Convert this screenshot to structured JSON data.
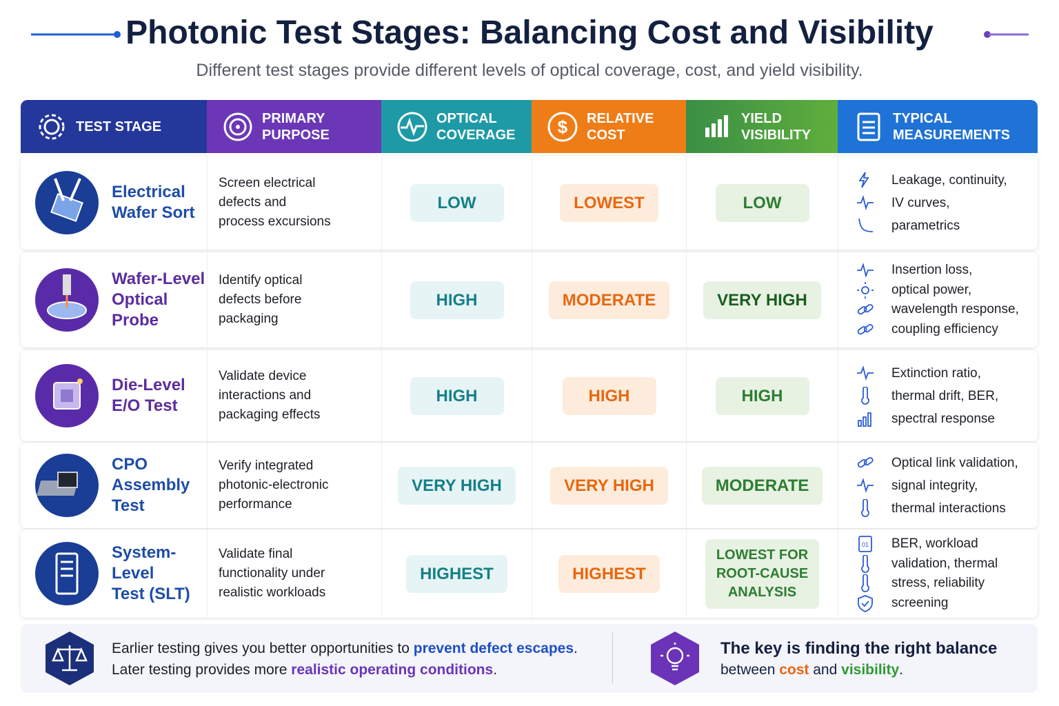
{
  "header": {
    "title": "Photonic Test Stages: Balancing Cost and Visibility",
    "subtitle": "Different test stages provide different levels of optical coverage, cost, and yield visibility."
  },
  "table": {
    "columns": [
      [
        "TEST STAGE"
      ],
      [
        "PRIMARY PURPOSE"
      ],
      [
        "OPTICAL",
        "COVERAGE"
      ],
      [
        "RELATIVE",
        "COST"
      ],
      [
        "YIELD",
        "VISIBILITY"
      ],
      [
        "TYPICAL",
        "MEASUREMENTS"
      ]
    ],
    "rows": [
      {
        "stage": [
          "Electrical",
          "Wafer Sort"
        ],
        "purpose": [
          "Screen electrical",
          "defects and",
          "process excursions"
        ],
        "coverage": [
          "LOW"
        ],
        "cost": [
          "LOWEST"
        ],
        "visibility": [
          "LOW"
        ],
        "measurements": [
          "Leakage, continuity,",
          "IV curves,",
          "parametrics"
        ]
      },
      {
        "stage": [
          "Wafer-Level",
          "Optical Probe"
        ],
        "purpose": [
          "Identify optical",
          "defects before",
          "packaging"
        ],
        "coverage": [
          "HIGH"
        ],
        "cost": [
          "MODERATE"
        ],
        "visibility": [
          "VERY HIGH"
        ],
        "measurements": [
          "Insertion loss,",
          "optical power,",
          "wavelength response,",
          "coupling efficiency"
        ]
      },
      {
        "stage": [
          "Die-Level",
          "E/O Test"
        ],
        "purpose": [
          "Validate device",
          "interactions and",
          "packaging effects"
        ],
        "coverage": [
          "HIGH"
        ],
        "cost": [
          "HIGH"
        ],
        "visibility": [
          "HIGH"
        ],
        "measurements": [
          "Extinction ratio,",
          "thermal drift, BER,",
          "spectral response"
        ]
      },
      {
        "stage": [
          "CPO",
          "Assembly Test"
        ],
        "purpose": [
          "Verify integrated",
          "photonic-electronic",
          "performance"
        ],
        "coverage": [
          "VERY HIGH"
        ],
        "cost": [
          "VERY HIGH"
        ],
        "visibility": [
          "MODERATE"
        ],
        "measurements": [
          "Optical link validation,",
          "signal integrity,",
          "thermal interactions"
        ]
      },
      {
        "stage": [
          "System-Level",
          "Test (SLT)"
        ],
        "purpose": [
          "Validate final",
          "functionality under",
          "realistic workloads"
        ],
        "coverage": [
          "HIGHEST"
        ],
        "cost": [
          "HIGHEST"
        ],
        "visibility": [
          "LOWEST FOR",
          "ROOT-CAUSE",
          "ANALYSIS"
        ],
        "measurements": [
          "BER, workload",
          "validation, thermal",
          "stress, reliability",
          "screening"
        ]
      }
    ]
  },
  "footer": {
    "left": [
      [
        "Earlier testing gives you better opportunities to ",
        "prevent defect escapes",
        "."
      ],
      [
        "Later testing provides more ",
        "realistic operating conditions",
        "."
      ]
    ],
    "right": [
      [
        "The key is finding the right balance"
      ],
      [
        "between ",
        "cost",
        " and ",
        "visibility",
        "."
      ]
    ]
  }
}
